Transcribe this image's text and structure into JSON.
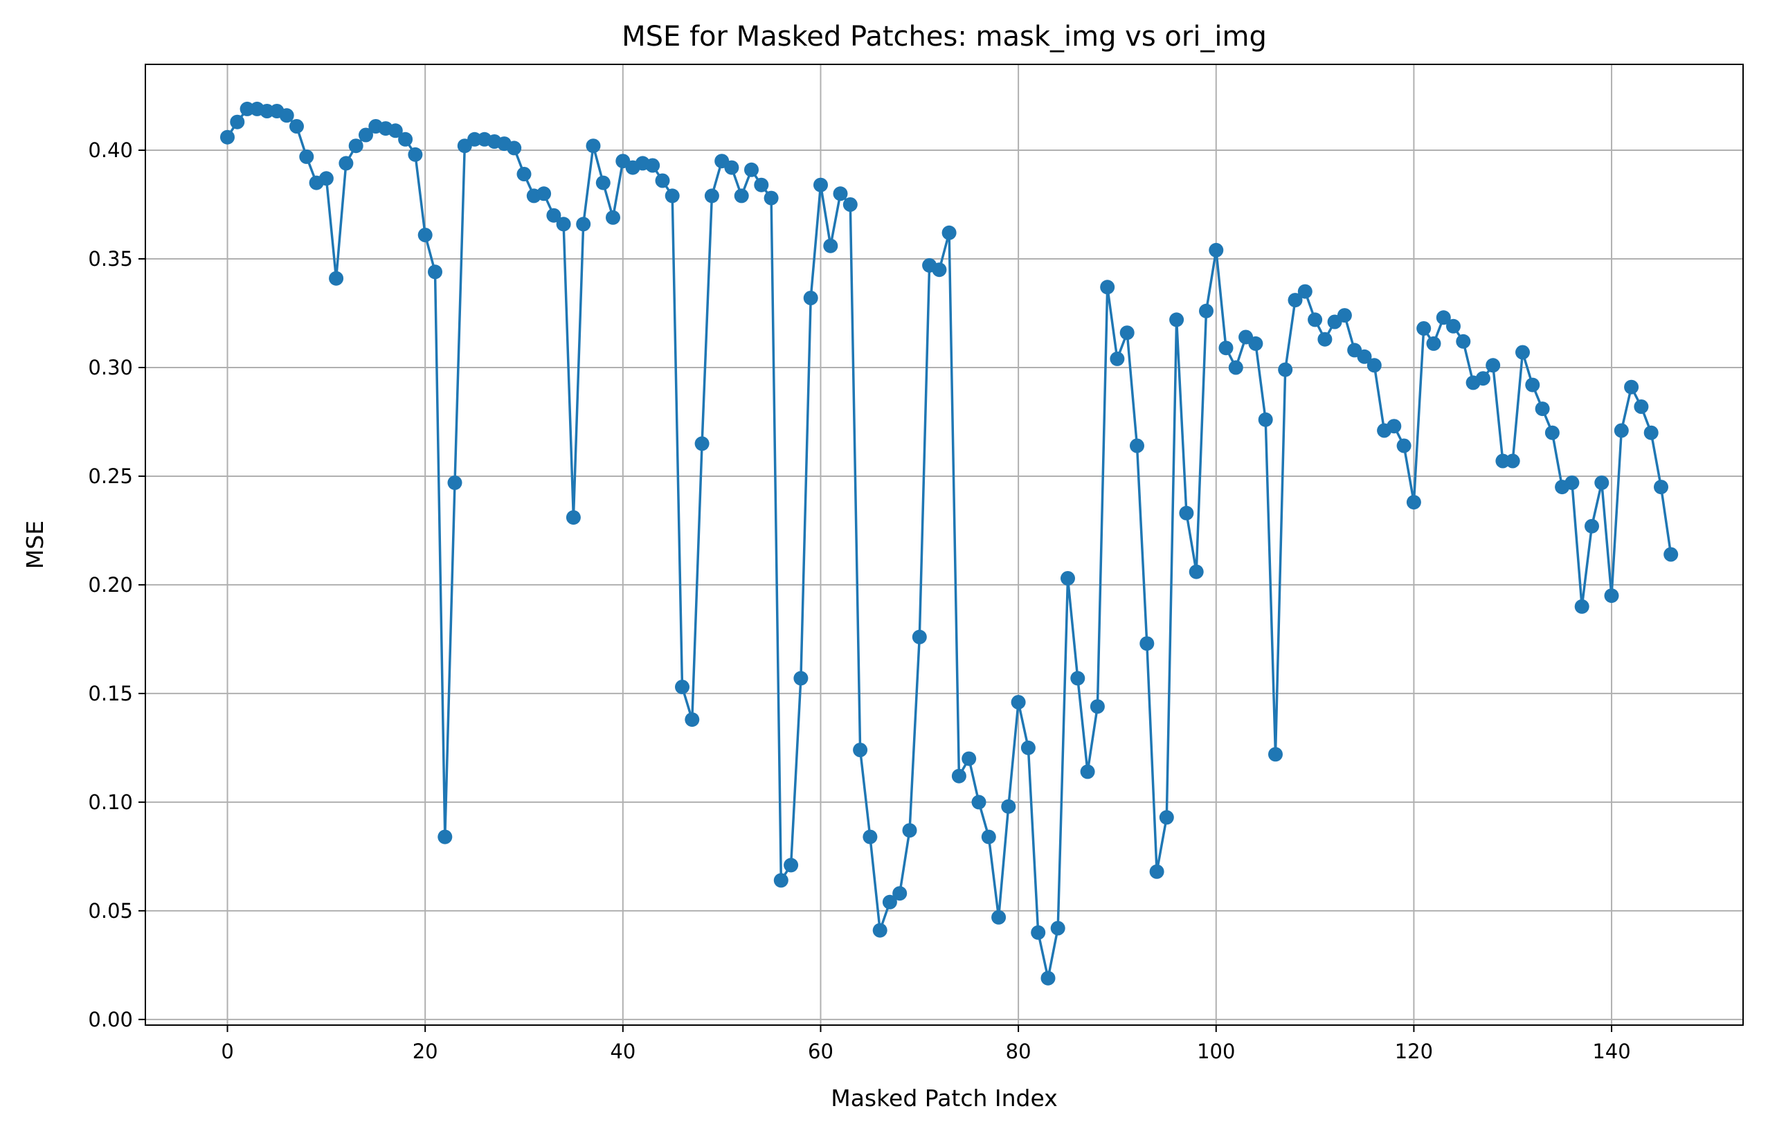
{
  "chart_data": {
    "type": "line",
    "title": "MSE for Masked Patches: mask_img vs ori_img",
    "xlabel": "Masked Patch Index",
    "ylabel": "MSE",
    "xlim": [
      -8.3,
      153.3
    ],
    "ylim": [
      -0.0026,
      0.4395
    ],
    "xticks": [
      0,
      20,
      40,
      60,
      80,
      100,
      120,
      140
    ],
    "xtick_labels": [
      "0",
      "20",
      "40",
      "60",
      "80",
      "100",
      "120",
      "140"
    ],
    "yticks": [
      0.0,
      0.05,
      0.1,
      0.15,
      0.2,
      0.25,
      0.3,
      0.35,
      0.4
    ],
    "ytick_labels": [
      "0.00",
      "0.05",
      "0.10",
      "0.15",
      "0.20",
      "0.25",
      "0.30",
      "0.35",
      "0.40"
    ],
    "grid": true,
    "marker": "circle",
    "color": "#1f77b4",
    "series": [
      {
        "values": [
          0.406,
          0.413,
          0.419,
          0.419,
          0.418,
          0.418,
          0.416,
          0.411,
          0.397,
          0.385,
          0.387,
          0.341,
          0.394,
          0.402,
          0.407,
          0.411,
          0.41,
          0.409,
          0.405,
          0.398,
          0.361,
          0.344,
          0.084,
          0.247,
          0.402,
          0.405,
          0.405,
          0.404,
          0.403,
          0.401,
          0.389,
          0.379,
          0.38,
          0.37,
          0.366,
          0.231,
          0.366,
          0.402,
          0.385,
          0.369,
          0.395,
          0.392,
          0.394,
          0.393,
          0.386,
          0.379,
          0.153,
          0.138,
          0.265,
          0.379,
          0.395,
          0.392,
          0.379,
          0.391,
          0.384,
          0.378,
          0.064,
          0.071,
          0.157,
          0.332,
          0.384,
          0.356,
          0.38,
          0.375,
          0.124,
          0.084,
          0.041,
          0.054,
          0.058,
          0.087,
          0.176,
          0.347,
          0.345,
          0.362,
          0.112,
          0.12,
          0.1,
          0.084,
          0.047,
          0.098,
          0.146,
          0.125,
          0.04,
          0.019,
          0.042,
          0.203,
          0.157,
          0.114,
          0.144,
          0.337,
          0.304,
          0.316,
          0.264,
          0.173,
          0.068,
          0.093,
          0.322,
          0.233,
          0.206,
          0.326,
          0.354,
          0.309,
          0.3,
          0.314,
          0.311,
          0.276,
          0.122,
          0.299,
          0.331,
          0.335,
          0.322,
          0.313,
          0.321,
          0.324,
          0.308,
          0.305,
          0.301,
          0.271,
          0.273,
          0.264,
          0.238,
          0.318,
          0.311,
          0.323,
          0.319,
          0.312,
          0.293,
          0.295,
          0.301,
          0.257,
          0.257,
          0.307,
          0.292,
          0.281,
          0.27,
          0.245,
          0.247,
          0.19,
          0.227,
          0.247,
          0.195,
          0.271,
          0.291,
          0.282,
          0.27,
          0.245,
          0.214
        ]
      }
    ]
  }
}
